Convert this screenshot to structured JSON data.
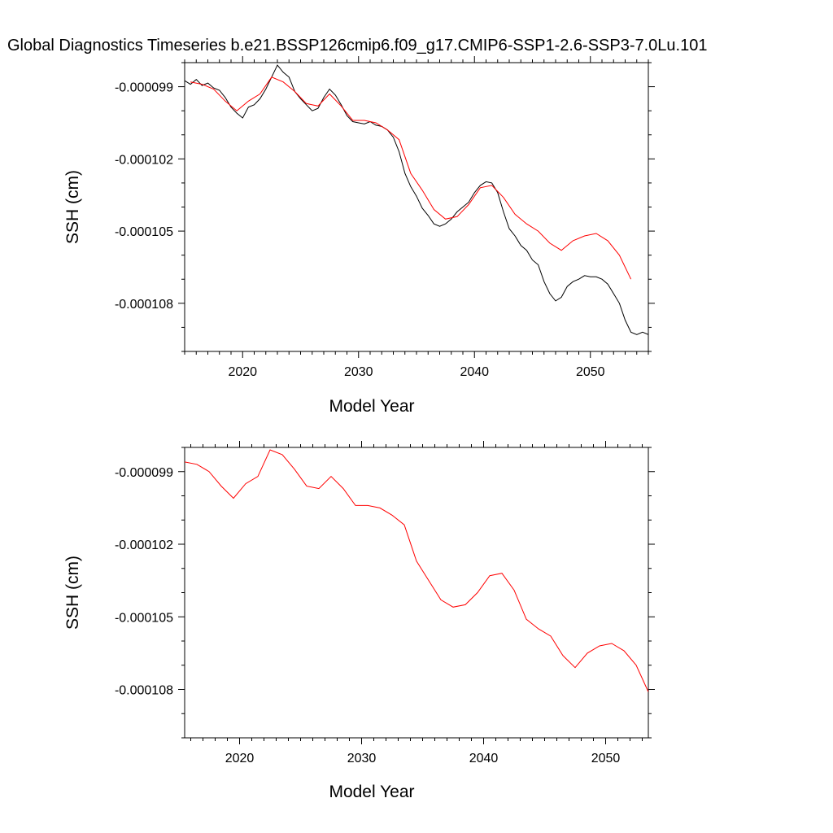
{
  "title": "Global Diagnostics Timeseries b.e21.BSSP126cmip6.f09_g17.CMIP6-SSP1-2.6-SSP3-7.0Lu.101",
  "chart_data": [
    {
      "type": "line",
      "xlabel": "Model Year",
      "ylabel": "SSH (cm)",
      "xlim": [
        2015,
        2055
      ],
      "ylim": [
        -0.00011,
        -9.8e-05
      ],
      "xticks": [
        2020,
        2030,
        2040,
        2050
      ],
      "yticks": [
        -9.9e-05,
        -0.000102,
        -0.000105,
        -0.000108
      ],
      "ytick_labels": [
        "-0.000099",
        "-0.000102",
        "-0.000105",
        "-0.000108"
      ],
      "grid": false,
      "series": [
        {
          "color": "#000000",
          "note": "monthly noisy series",
          "x": [
            2015.0,
            2015.5,
            2016.0,
            2016.5,
            2017.0,
            2017.5,
            2018.0,
            2018.5,
            2019.0,
            2019.5,
            2020.0,
            2020.5,
            2021.0,
            2021.5,
            2022.0,
            2022.5,
            2023.0,
            2023.5,
            2024.0,
            2024.5,
            2025.0,
            2025.5,
            2026.0,
            2026.5,
            2027.0,
            2027.5,
            2028.0,
            2028.5,
            2029.0,
            2029.5,
            2030.0,
            2030.5,
            2031.0,
            2031.5,
            2032.0,
            2032.5,
            2033.0,
            2033.5,
            2034.0,
            2034.5,
            2035.0,
            2035.5,
            2036.0,
            2036.5,
            2037.0,
            2037.5,
            2038.0,
            2038.5,
            2039.0,
            2039.5,
            2040.0,
            2040.5,
            2041.0,
            2041.5,
            2042.0,
            2042.5,
            2043.0,
            2043.5,
            2044.0,
            2044.5,
            2045.0,
            2045.5,
            2046.0,
            2046.5,
            2047.0,
            2047.5,
            2048.0,
            2048.5,
            2049.0,
            2049.5,
            2050.0,
            2050.5,
            2051.0,
            2051.5,
            2052.0,
            2052.5,
            2053.0,
            2053.5,
            2054.0,
            2054.5,
            2055.0
          ],
          "y": [
            -9.875e-05,
            -9.89e-05,
            -9.87e-05,
            -9.895e-05,
            -9.885e-05,
            -9.905e-05,
            -9.915e-05,
            -9.945e-05,
            -9.985e-05,
            -0.0001001,
            -0.0001003,
            -9.985e-05,
            -9.975e-05,
            -9.95e-05,
            -9.91e-05,
            -9.86e-05,
            -9.81e-05,
            -9.84e-05,
            -9.86e-05,
            -9.92e-05,
            -9.95e-05,
            -9.975e-05,
            -0.0001,
            -9.99e-05,
            -9.945e-05,
            -9.91e-05,
            -9.935e-05,
            -9.975e-05,
            -0.0001002,
            -0.00010045,
            -0.0001005,
            -0.00010055,
            -0.00010045,
            -0.0001006,
            -0.00010065,
            -0.0001008,
            -0.0001011,
            -0.0001017,
            -0.0001026,
            -0.00010315,
            -0.00010355,
            -0.00010405,
            -0.00010435,
            -0.0001047,
            -0.0001048,
            -0.0001047,
            -0.0001045,
            -0.0001042,
            -0.000104,
            -0.0001038,
            -0.0001034,
            -0.0001031,
            -0.00010295,
            -0.000103,
            -0.0001034,
            -0.0001042,
            -0.0001049,
            -0.0001052,
            -0.0001056,
            -0.0001058,
            -0.0001062,
            -0.0001064,
            -0.0001071,
            -0.0001076,
            -0.0001079,
            -0.00010775,
            -0.0001073,
            -0.0001071,
            -0.000107,
            -0.00010685,
            -0.0001069,
            -0.0001069,
            -0.000107,
            -0.0001072,
            -0.0001076,
            -0.000108,
            -0.0001087,
            -0.0001092,
            -0.0001093,
            -0.0001092,
            -0.0001093
          ]
        },
        {
          "color": "#ff0000",
          "note": "annual mean",
          "x": [
            2015.5,
            2016.5,
            2017.5,
            2018.5,
            2019.5,
            2020.5,
            2021.5,
            2022.5,
            2023.5,
            2024.5,
            2025.5,
            2026.5,
            2027.5,
            2028.5,
            2029.5,
            2030.5,
            2031.5,
            2032.5,
            2033.5,
            2034.5,
            2035.5,
            2036.5,
            2037.5,
            2038.5,
            2039.5,
            2040.5,
            2041.5,
            2042.5,
            2043.5,
            2044.5,
            2045.5,
            2046.5,
            2047.5,
            2048.5,
            2049.5,
            2050.5,
            2051.5,
            2052.5,
            2053.5
          ],
          "y": [
            -9.88e-05,
            -9.89e-05,
            -9.91e-05,
            -9.96e-05,
            -0.0001,
            -9.96e-05,
            -9.93e-05,
            -9.86e-05,
            -9.88e-05,
            -9.92e-05,
            -9.97e-05,
            -9.98e-05,
            -9.93e-05,
            -9.98e-05,
            -0.0001004,
            -0.0001004,
            -0.0001005,
            -0.0001008,
            -0.0001012,
            -0.0001026,
            -0.0001033,
            -0.0001041,
            -0.0001045,
            -0.0001044,
            -0.0001039,
            -0.0001032,
            -0.0001031,
            -0.0001036,
            -0.0001043,
            -0.0001047,
            -0.000105,
            -0.0001055,
            -0.0001058,
            -0.0001054,
            -0.0001052,
            -0.0001051,
            -0.0001054,
            -0.000106,
            -0.000107
          ]
        }
      ]
    },
    {
      "type": "line",
      "xlabel": "Model Year",
      "ylabel": "SSH (cm)",
      "xlim": [
        2015.5,
        2053.5
      ],
      "ylim": [
        -0.00011,
        -9.8e-05
      ],
      "xticks": [
        2020,
        2030,
        2040,
        2050
      ],
      "yticks": [
        -9.9e-05,
        -0.000102,
        -0.000105,
        -0.000108
      ],
      "ytick_labels": [
        "-0.000099",
        "-0.000102",
        "-0.000105",
        "-0.000108"
      ],
      "grid": false,
      "series": [
        {
          "color": "#ff0000",
          "note": "annual mean",
          "x": [
            2015.5,
            2016.5,
            2017.5,
            2018.5,
            2019.5,
            2020.5,
            2021.5,
            2022.5,
            2023.5,
            2024.5,
            2025.5,
            2026.5,
            2027.5,
            2028.5,
            2029.5,
            2030.5,
            2031.5,
            2032.5,
            2033.5,
            2034.5,
            2035.5,
            2036.5,
            2037.5,
            2038.5,
            2039.5,
            2040.5,
            2041.5,
            2042.5,
            2043.5,
            2044.5,
            2045.5,
            2046.5,
            2047.5,
            2048.5,
            2049.5,
            2050.5,
            2051.5,
            2052.5,
            2053.5
          ],
          "y": [
            -9.86e-05,
            -9.87e-05,
            -9.9e-05,
            -9.96e-05,
            -0.0001001,
            -9.95e-05,
            -9.92e-05,
            -9.81e-05,
            -9.83e-05,
            -9.89e-05,
            -9.96e-05,
            -9.97e-05,
            -9.92e-05,
            -9.97e-05,
            -0.0001004,
            -0.0001004,
            -0.0001005,
            -0.0001008,
            -0.0001012,
            -0.0001027,
            -0.0001035,
            -0.0001043,
            -0.0001046,
            -0.0001045,
            -0.000104,
            -0.0001033,
            -0.0001032,
            -0.0001039,
            -0.0001051,
            -0.0001055,
            -0.0001058,
            -0.0001066,
            -0.0001071,
            -0.0001065,
            -0.0001062,
            -0.0001061,
            -0.0001064,
            -0.000107,
            -0.0001081
          ]
        }
      ]
    }
  ]
}
